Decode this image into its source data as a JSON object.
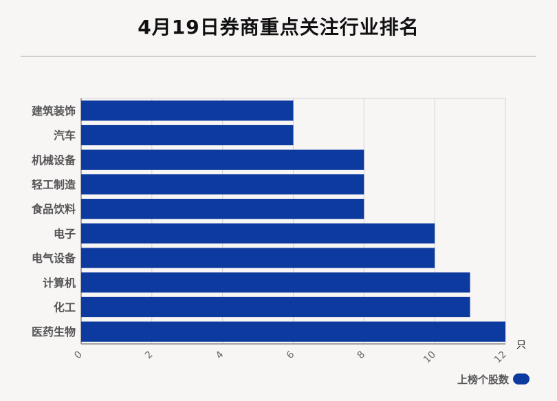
{
  "title": "4月19日券商重点关注行业排名",
  "legend_label": "上榜个股数",
  "colors": {
    "bar": "#0d3a9e",
    "background": "#f8f5f5"
  },
  "chart_data": {
    "type": "bar",
    "orientation": "horizontal",
    "categories": [
      "建筑装饰",
      "汽车",
      "机械设备",
      "轻工制造",
      "食品饮料",
      "电子",
      "电气设备",
      "计算机",
      "化工",
      "医药生物"
    ],
    "series": [
      {
        "name": "上榜个股数",
        "values": [
          6,
          6,
          8,
          8,
          8,
          10,
          10,
          11,
          11,
          12
        ]
      }
    ],
    "x_ticks": [
      "0",
      "2",
      "4",
      "6",
      "8",
      "10",
      "12"
    ],
    "xlim": [
      0,
      12
    ],
    "x_unit": "只",
    "grid": true,
    "legend_position": "bottom-right"
  }
}
